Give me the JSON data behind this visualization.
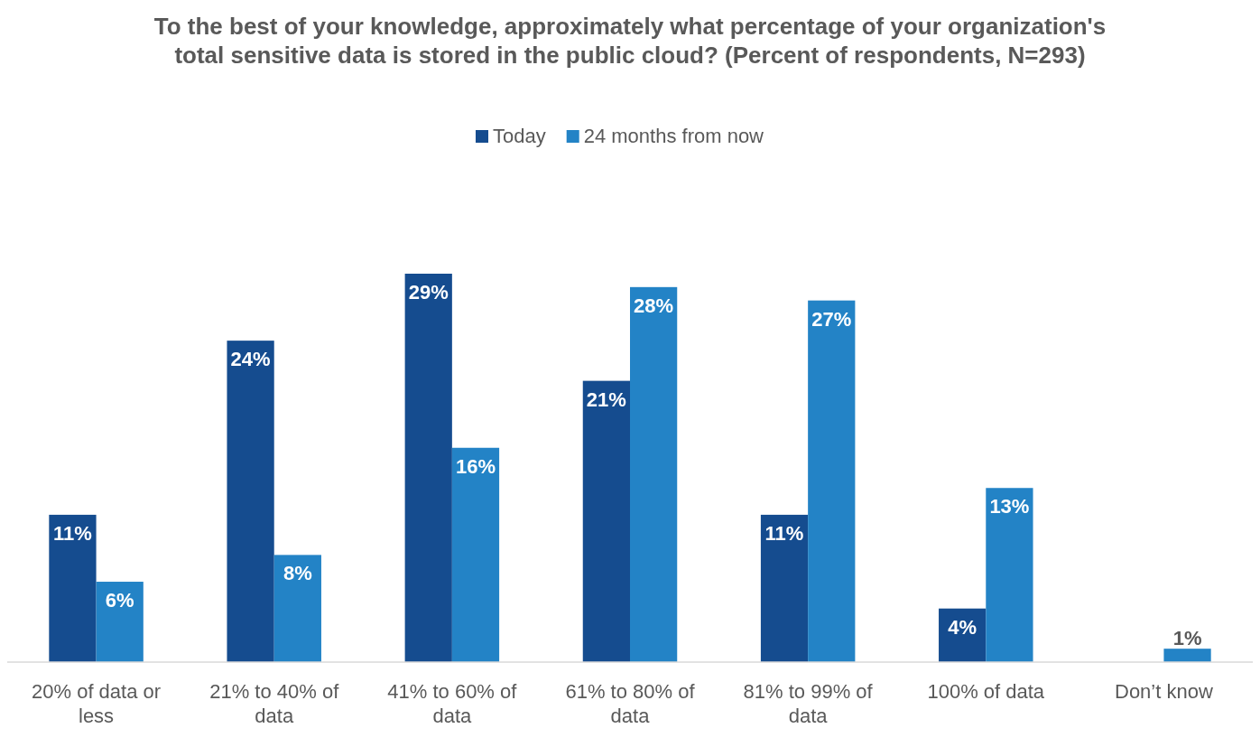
{
  "chart_data": {
    "type": "bar",
    "title": "To the best of your knowledge, approximately what percentage of your organization's total sensitive data is stored in the public cloud? (Percent of respondents, N=293)",
    "categories": [
      "20% of data or less",
      "21% to 40% of data",
      "41% to 60% of data",
      "61% to 80% of data",
      "81% to 99% of data",
      "100% of data",
      "Don’t know"
    ],
    "series": [
      {
        "name": "Today",
        "color": "#154c8f",
        "values": [
          11,
          24,
          29,
          21,
          11,
          4,
          null
        ],
        "value_labels": [
          "11%",
          "24%",
          "29%",
          "21%",
          "11%",
          "4%",
          null
        ]
      },
      {
        "name": "24 months from now",
        "color": "#2383c6",
        "values": [
          6,
          8,
          16,
          28,
          27,
          13,
          1
        ],
        "value_labels": [
          "6%",
          "8%",
          "16%",
          "28%",
          "27%",
          "13%",
          "1%"
        ]
      }
    ],
    "legend": "top"
  }
}
